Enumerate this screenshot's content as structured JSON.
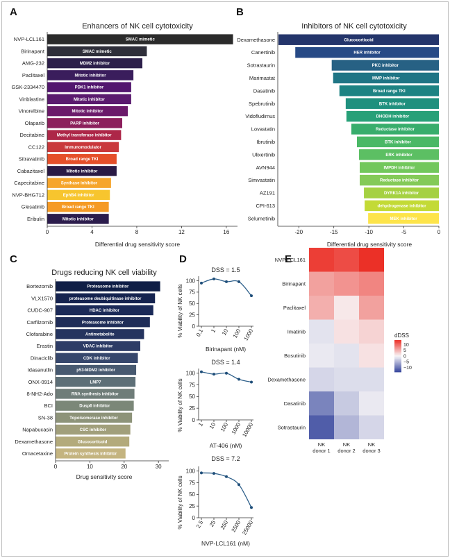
{
  "panels": {
    "A": "A",
    "B": "B",
    "C": "C",
    "D": "D",
    "E": "E"
  },
  "chart_data": [
    {
      "panel": "A",
      "type": "bar",
      "orientation": "horizontal",
      "title": "Enhancers of NK cell cytotoxicity",
      "xlabel": "Differential drug sensitivity score",
      "xlim": [
        0,
        17
      ],
      "xticks": [
        0,
        4,
        8,
        12,
        16
      ],
      "categories": [
        "NVP-LCL161",
        "Birinapant",
        "AMG-232",
        "Paclitaxel",
        "GSK-2334470",
        "Vinblastine",
        "Vinorelbine",
        "Olaparib",
        "Decitabine",
        "CC122",
        "Sitravatinib",
        "Cabazitaxel",
        "Capecitabine",
        "NVP-BHG712",
        "Glesatinib",
        "Eribulin"
      ],
      "values": [
        16.6,
        8.9,
        8.5,
        7.7,
        7.5,
        7.5,
        7.2,
        6.7,
        6.6,
        6.4,
        6.2,
        6.2,
        5.7,
        5.6,
        5.5,
        5.5
      ],
      "bar_labels": [
        "SMAC mimetic",
        "SMAC mimetic",
        "MDM2 inhibitor",
        "Mitotic inhibitor",
        "PDK1 inhibitor",
        "Mitotic inhibitor",
        "Mitotic inhibitor",
        "PARP inhibitor",
        "Methyl transferase inhibitor",
        "Immunomodulator",
        "Broad range TKI",
        "Mitotic inhibitor",
        "Synthase inhibitor",
        "EphB4 inhibitor",
        "Broad range TKI",
        "Mitotic inhibitor"
      ],
      "colors": [
        "#2b2b2b",
        "#2f2f3a",
        "#2c1f4a",
        "#3a1d5c",
        "#52166e",
        "#5a1a6e",
        "#6b1a6a",
        "#8c1f5c",
        "#ad2748",
        "#c9383b",
        "#e54f2a",
        "#2a1a45",
        "#f6a52b",
        "#f7c52e",
        "#f59a25",
        "#2b1c4c"
      ]
    },
    {
      "panel": "B",
      "type": "bar",
      "orientation": "horizontal",
      "title": "Inhibitors of NK cell cytotoxicity",
      "xlabel": "Differential drug sensitivity score",
      "xlim": [
        -23,
        0
      ],
      "xticks": [
        -20,
        -15,
        -10,
        -5,
        0
      ],
      "categories": [
        "Dexamethasone",
        "Canertinib",
        "Sotrastaurin",
        "Marimastat",
        "Dasatinib",
        "Spebrutinib",
        "Vidofludimus",
        "Lovastatin",
        "Ibrutinib",
        "Ulixertinib",
        "AVN944",
        "Simvastatin",
        "AZ191",
        "CPI-613",
        "Selumetinib"
      ],
      "values": [
        -22.9,
        -20.5,
        -15.3,
        -15.1,
        -14.2,
        -13.3,
        -13.2,
        -12.5,
        -11.7,
        -11.4,
        -11.3,
        -11.3,
        -10.7,
        -10.6,
        -10.1
      ],
      "bar_labels": [
        "Glucocorticoid",
        "HER inhibitor",
        "PKC inhibitor",
        "MMP inhibitor",
        "Broad range TKI",
        "BTK inhibitor",
        "DHODH inhibitor",
        "Reductase inhibitor",
        "BTK inhibitor",
        "ERK inhibitor",
        "IMPDH inhibitor",
        "Reductase inhibitor",
        "DYRK1A inhibitor",
        "dehydrogenase inhibitor",
        "MEK inhibitor"
      ],
      "colors": [
        "#24356b",
        "#274a86",
        "#276184",
        "#1f7585",
        "#1d8383",
        "#1f907e",
        "#27a078",
        "#38ad6c",
        "#4ab866",
        "#5cbf63",
        "#72c75c",
        "#84ca58",
        "#a5d142",
        "#c3da36",
        "#fde44a"
      ]
    },
    {
      "panel": "C",
      "type": "bar",
      "orientation": "horizontal",
      "title": "Drugs reducing NK cell viability",
      "xlabel": "Drug sensitivity score",
      "xlim": [
        0,
        33
      ],
      "xticks": [
        0,
        10,
        20,
        30
      ],
      "categories": [
        "Bortezomib",
        "VLX1570",
        "CUDC-907",
        "Carfilzomib",
        "Clofarabine",
        "Erastin",
        "Dinaciclib",
        "Idasanutlin",
        "ONX-0914",
        "8-NH2-Ado",
        "BCI",
        "SN-38",
        "Napabucasin",
        "Dexamethasone",
        "Omacetaxine"
      ],
      "values": [
        30.5,
        29.0,
        28.5,
        27.5,
        25.8,
        24.7,
        24.0,
        23.5,
        23.3,
        23.0,
        22.8,
        22.3,
        21.8,
        21.5,
        20.4
      ],
      "bar_labels": [
        "Proteasome inhibitor",
        "proteasome deubiquitinase inhibitor",
        "HDAC inhibitor",
        "Proteasome inhibitor",
        "Antimetabolite",
        "VDAC inhibitor",
        "CDK inhibitor",
        "p53-MDM2 inhibitor",
        "LMP7",
        "RNA synthesis inhibitor",
        "Dusp6 inhibitor",
        "Topoisomerase inhibitor",
        "CSC inhibitor",
        "Glucocorticoid",
        "Protein synthesis inhibitor"
      ],
      "colors": [
        "#0f1e46",
        "#15234f",
        "#1b2a58",
        "#1f2d58",
        "#25345f",
        "#2d3c66",
        "#36476c",
        "#475970",
        "#5d6f77",
        "#6f7d79",
        "#7b8778",
        "#8d9379",
        "#a19f7b",
        "#b3aa7b",
        "#c4b480"
      ]
    },
    {
      "panel": "D1",
      "type": "scatter",
      "title": "DSS = 1.5",
      "xlabel": "Birinapant (nM)",
      "ylabel": "% Viability of NK cells",
      "xscale": "log",
      "xticks": [
        "0.1",
        "1",
        "10",
        "100",
        "1000"
      ],
      "ylim": [
        0,
        110
      ],
      "yticks": [
        0,
        25,
        50,
        75,
        100
      ],
      "x": [
        0.1,
        1,
        10,
        100,
        1000
      ],
      "y": [
        95,
        104,
        98,
        98,
        67
      ]
    },
    {
      "panel": "D2",
      "type": "scatter",
      "title": "DSS = 1.4",
      "xlabel": "AT-406 (nM)",
      "ylabel": "% Viability of NK cells",
      "xscale": "log",
      "xticks": [
        "1",
        "10",
        "100",
        "1000",
        "10000"
      ],
      "ylim": [
        0,
        110
      ],
      "yticks": [
        0,
        25,
        50,
        75,
        100
      ],
      "x": [
        1,
        10,
        100,
        1000,
        10000
      ],
      "y": [
        103,
        98,
        100,
        87,
        81
      ]
    },
    {
      "panel": "D3",
      "type": "scatter",
      "title": "DSS = 7.2",
      "xlabel": "NVP-LCL161 (nM)",
      "ylabel": "% Viability of NK cells",
      "xscale": "log",
      "xticks": [
        "2.5",
        "25",
        "250",
        "2500",
        "25000"
      ],
      "ylim": [
        0,
        110
      ],
      "yticks": [
        0,
        25,
        50,
        75,
        100
      ],
      "x": [
        2.5,
        25,
        250,
        2500,
        25000
      ],
      "y": [
        96,
        95,
        88,
        71,
        22
      ]
    },
    {
      "panel": "E",
      "type": "heatmap",
      "rows": [
        "NVP-LCL161",
        "Birinapant",
        "Paclitaxel",
        "Imatinib",
        "Bosutinib",
        "Dexamethasone",
        "Dasatinib",
        "Sotrastaurin"
      ],
      "columns": [
        "NK\ndonor 1",
        "NK\ndonor 2",
        "NK\ndonor 3"
      ],
      "values": [
        [
          13,
          12,
          14
        ],
        [
          6,
          7,
          8
        ],
        [
          5,
          1,
          6
        ],
        [
          -1.5,
          1.5,
          2.5
        ],
        [
          -1,
          -1.5,
          1.5
        ],
        [
          -2.5,
          -2,
          -2
        ],
        [
          -9,
          -3.5,
          -1
        ],
        [
          -12,
          -5,
          -2.5
        ]
      ],
      "legend_title": "dDSS",
      "legend_ticks": [
        10,
        5,
        0,
        -5,
        -10
      ],
      "vmin": -14,
      "vmax": 14
    }
  ]
}
